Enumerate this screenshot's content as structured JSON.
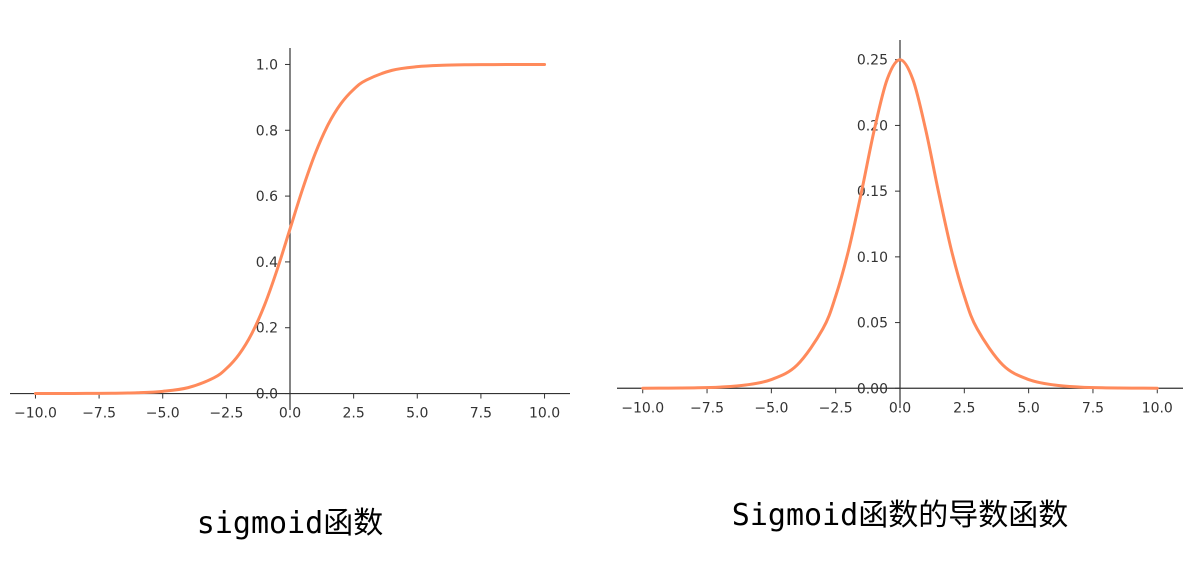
{
  "colors": {
    "curve": "#ff8a5b",
    "axis": "#333333"
  },
  "chart_data": [
    {
      "type": "line",
      "caption": "sigmoid函数",
      "title": "",
      "xlabel": "",
      "ylabel": "",
      "xlim": [
        -11.0,
        11.0
      ],
      "ylim": [
        -0.05,
        1.05
      ],
      "spines": "centered at origin (left spine at x=0, bottom spine at y=0)",
      "grid": false,
      "xticks": [
        -10.0,
        -7.5,
        -5.0,
        -2.5,
        0.0,
        2.5,
        5.0,
        7.5,
        10.0
      ],
      "xtick_labels": [
        "−10.0",
        "−7.5",
        "−5.0",
        "−2.5",
        "0.0",
        "2.5",
        "5.0",
        "7.5",
        "10.0"
      ],
      "yticks": [
        0.0,
        0.2,
        0.4,
        0.6,
        0.8,
        1.0
      ],
      "ytick_labels": [
        "0.0",
        "0.2",
        "0.4",
        "0.6",
        "0.8",
        "1.0"
      ],
      "series": [
        {
          "x": [
            -10,
            -9,
            -8,
            -7,
            -6,
            -5,
            -4,
            -3,
            -2.5,
            -2,
            -1.5,
            -1,
            -0.5,
            0,
            0.5,
            1,
            1.5,
            2,
            2.5,
            3,
            4,
            5,
            6,
            7,
            8,
            9,
            10
          ],
          "y": [
            5e-05,
            0.00012,
            0.00034,
            0.00091,
            0.00247,
            0.00669,
            0.01799,
            0.04743,
            0.07586,
            0.1192,
            0.18243,
            0.26894,
            0.37754,
            0.5,
            0.62246,
            0.73106,
            0.81757,
            0.8808,
            0.92414,
            0.95257,
            0.98201,
            0.99331,
            0.99753,
            0.99909,
            0.99966,
            0.99988,
            0.99995
          ]
        }
      ]
    },
    {
      "type": "line",
      "caption": "Sigmoid函数的导数函数",
      "title": "",
      "xlabel": "",
      "ylabel": "",
      "xlim": [
        -11.0,
        11.0
      ],
      "ylim": [
        -0.015,
        0.265
      ],
      "spines": "centered at origin (left spine at x=0, bottom spine at y=0)",
      "grid": false,
      "xticks": [
        -10.0,
        -7.5,
        -5.0,
        -2.5,
        0.0,
        2.5,
        5.0,
        7.5,
        10.0
      ],
      "xtick_labels": [
        "−10.0",
        "−7.5",
        "−5.0",
        "−2.5",
        "0.0",
        "2.5",
        "5.0",
        "7.5",
        "10.0"
      ],
      "yticks": [
        0.0,
        0.05,
        0.1,
        0.15,
        0.2,
        0.25
      ],
      "ytick_labels": [
        "0.00",
        "0.05",
        "0.10",
        "0.15",
        "0.20",
        "0.25"
      ],
      "series": [
        {
          "x": [
            -10,
            -9,
            -8,
            -7,
            -6,
            -5,
            -4,
            -3,
            -2.5,
            -2,
            -1.5,
            -1,
            -0.5,
            0,
            0.5,
            1,
            1.5,
            2,
            2.5,
            3,
            4,
            5,
            6,
            7,
            8,
            9,
            10
          ],
          "y": [
            5e-05,
            0.00012,
            0.00034,
            0.00091,
            0.00247,
            0.00665,
            0.01766,
            0.04518,
            0.07011,
            0.10499,
            0.14915,
            0.19661,
            0.235,
            0.25,
            0.235,
            0.19661,
            0.14915,
            0.10499,
            0.07011,
            0.04518,
            0.01766,
            0.00665,
            0.00247,
            0.00091,
            0.00034,
            0.00012,
            5e-05
          ]
        }
      ]
    }
  ]
}
